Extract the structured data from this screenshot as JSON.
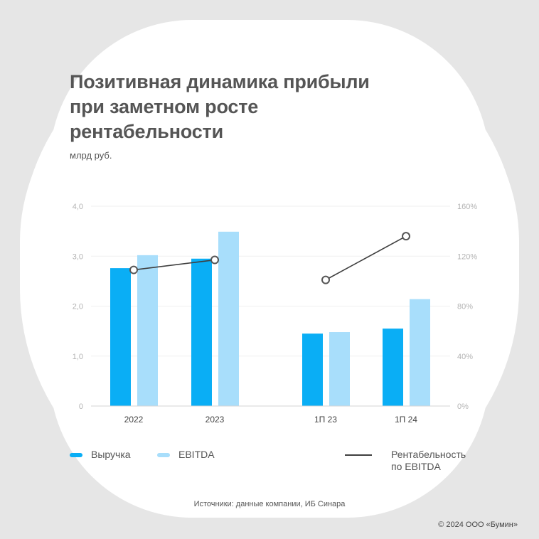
{
  "header": {
    "title": "Позитивная динамика прибыли при заметном росте рентабельности",
    "title_lines": [
      "Позитивная динамика прибыли",
      "при заметном росте",
      "рентабельности"
    ],
    "unit": "млрд руб."
  },
  "legend": {
    "revenue": "Выручка",
    "ebitda": "EBITDA",
    "margin_line1": "Рентабельность",
    "margin_line2": "по EBITDA"
  },
  "footer": {
    "source": "Источники: данные компании, ИБ Синара",
    "copyright": "© 2024 ООО «Бумин»"
  },
  "colors": {
    "revenue": "#0aaef5",
    "ebitda": "#a8defb",
    "margin": "#3f3f3f",
    "background": "#e6e6e6",
    "card": "#ffffff",
    "title": "#555555"
  },
  "chart_data": {
    "type": "bar",
    "title": "Позитивная динамика прибыли при заметном росте рентабельности",
    "subtitle": "млрд руб.",
    "categories": [
      "2022",
      "2023",
      "1П 23",
      "1П 24"
    ],
    "series": [
      {
        "name": "Выручка",
        "type": "bar",
        "axis": "left",
        "values": [
          2.76,
          2.95,
          1.45,
          1.55
        ]
      },
      {
        "name": "EBITDA",
        "type": "bar",
        "axis": "left",
        "values": [
          3.02,
          3.49,
          1.48,
          2.14
        ]
      },
      {
        "name": "Рентабельность по EBITDA",
        "type": "line",
        "axis": "right",
        "unit": "%",
        "values": [
          109,
          117,
          101,
          136
        ],
        "segments": [
          [
            0,
            1
          ],
          [
            2,
            3
          ]
        ]
      }
    ],
    "left_axis": {
      "ylim": [
        0,
        4.0
      ],
      "ticks": [
        "0",
        "1,0",
        "2,0",
        "3,0",
        "4,0"
      ]
    },
    "right_axis": {
      "ylim": [
        0,
        160
      ],
      "ticks": [
        "0%",
        "40%",
        "80%",
        "120%",
        "160%"
      ]
    },
    "xlabel": "",
    "ylabel": "млрд руб.",
    "grid": true,
    "legend_position": "bottom",
    "source": "Источники: данные компании, ИБ Синара"
  }
}
